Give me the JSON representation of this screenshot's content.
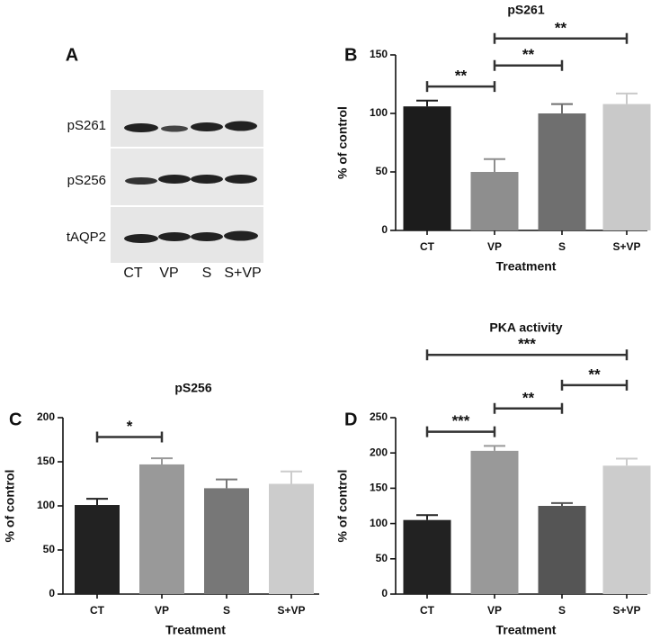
{
  "blot": {
    "panel_label": "A",
    "rows": [
      "pS261",
      "pS256",
      "tAQP2"
    ],
    "lanes": [
      "CT",
      "VP",
      "S",
      "S+VP"
    ]
  },
  "chart_data": [
    {
      "type": "bar",
      "panel_label": "B",
      "title": "pS261",
      "xlabel": "Treatment",
      "ylabel": "% of control",
      "categories": [
        "CT",
        "VP",
        "S",
        "S+VP"
      ],
      "values": [
        106,
        50,
        100,
        108
      ],
      "errors": [
        5,
        11,
        8,
        9
      ],
      "colors": [
        "#1c1c1c",
        "#8e8e8e",
        "#6f6f6f",
        "#c9c9c9"
      ],
      "ylim": [
        0,
        150
      ],
      "yticks": [
        0,
        50,
        100,
        150
      ],
      "annotations": [
        "**",
        "**",
        "**"
      ]
    },
    {
      "type": "bar",
      "panel_label": "C",
      "title": "pS256",
      "xlabel": "Treatment",
      "ylabel": "% of control",
      "categories": [
        "CT",
        "VP",
        "S",
        "S+VP"
      ],
      "values": [
        101,
        147,
        120,
        125
      ],
      "errors": [
        7,
        7,
        10,
        14
      ],
      "colors": [
        "#222222",
        "#999999",
        "#777777",
        "#cccccc"
      ],
      "ylim": [
        0,
        200
      ],
      "yticks": [
        0,
        50,
        100,
        150,
        200
      ],
      "annotations": [
        "*"
      ]
    },
    {
      "type": "bar",
      "panel_label": "D",
      "title": "PKA activity",
      "xlabel": "Treatment",
      "ylabel": "% of control",
      "categories": [
        "CT",
        "VP",
        "S",
        "S+VP"
      ],
      "values": [
        105,
        203,
        125,
        182
      ],
      "errors": [
        7,
        7,
        4,
        10
      ],
      "colors": [
        "#222222",
        "#999999",
        "#555555",
        "#cccccc"
      ],
      "ylim": [
        0,
        250
      ],
      "yticks": [
        0,
        50,
        100,
        150,
        200,
        250
      ],
      "annotations": [
        "***",
        "**",
        "**",
        "***"
      ]
    }
  ]
}
